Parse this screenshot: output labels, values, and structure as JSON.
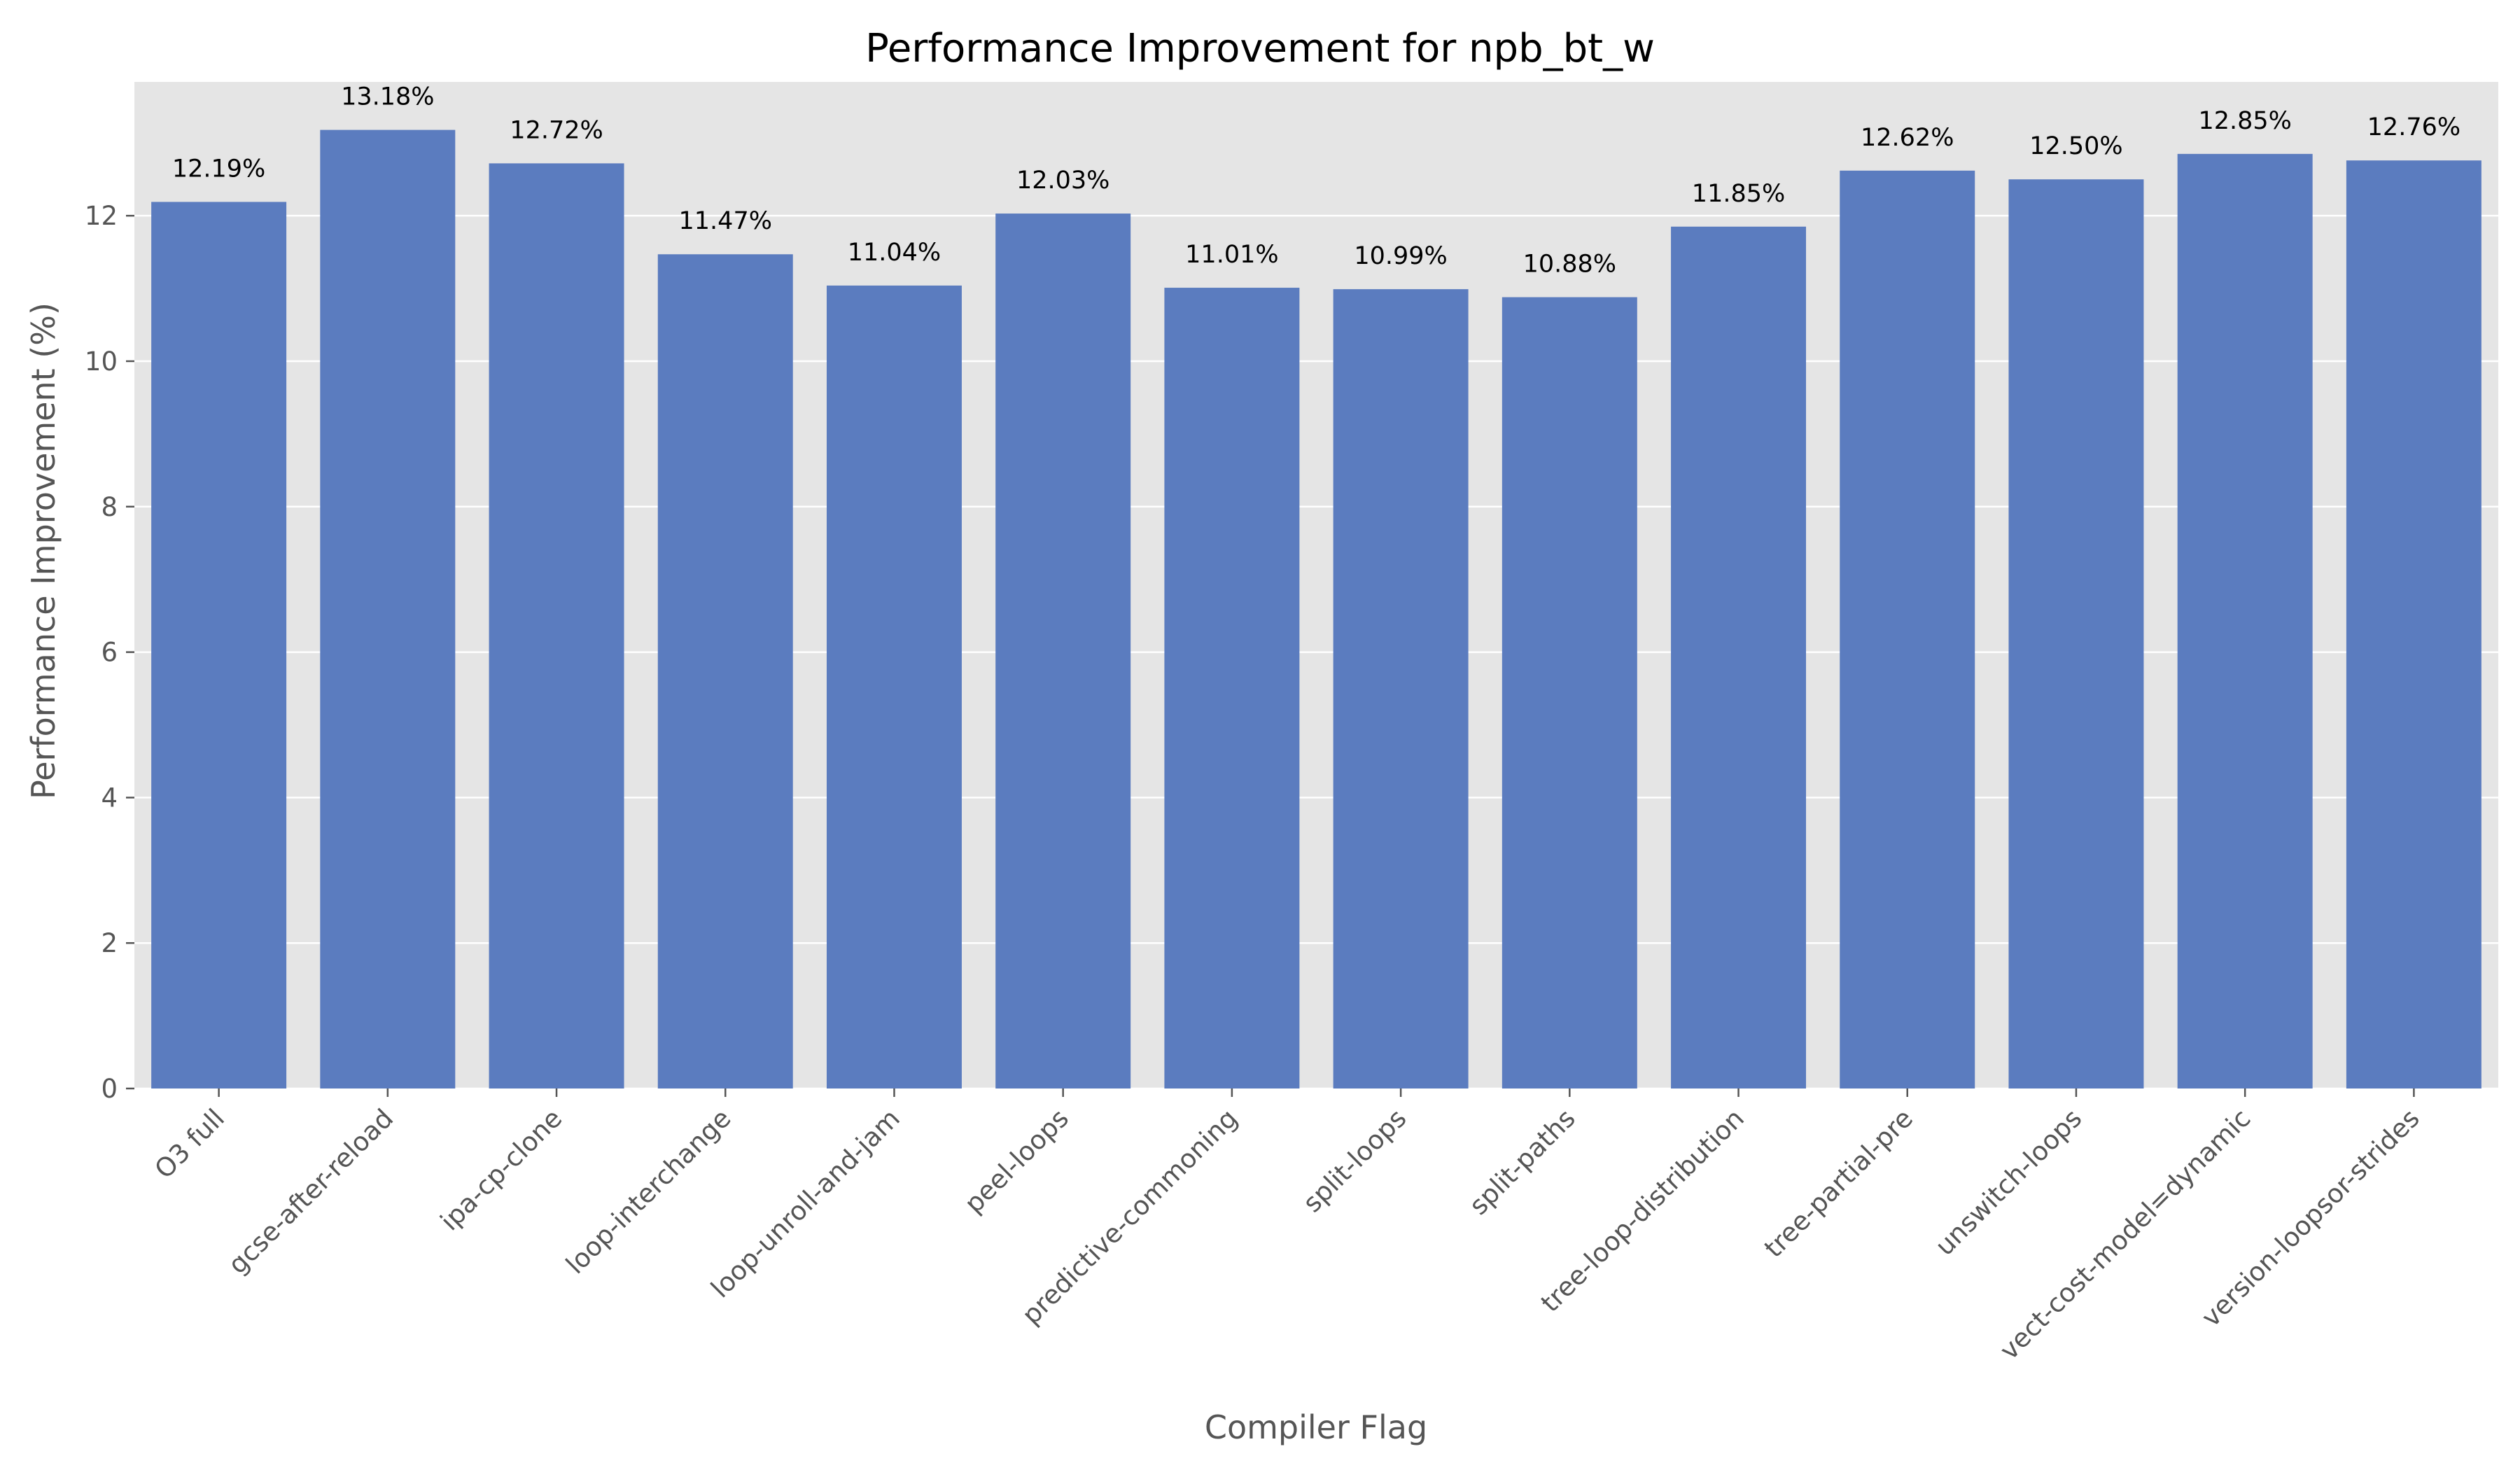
{
  "chart_data": {
    "type": "bar",
    "title": "Performance Improvement for npb_bt_w",
    "xlabel": "Compiler Flag",
    "ylabel": "Performance Improvement (%)",
    "categories": [
      "O3 full",
      "gcse-after-reload",
      "ipa-cp-clone",
      "loop-interchange",
      "loop-unroll-and-jam",
      "peel-loops",
      "predictive-commoning",
      "split-loops",
      "split-paths",
      "tree-loop-distribution",
      "tree-partial-pre",
      "unswitch-loops",
      "vect-cost-model=dynamic",
      "version-loopsor-strides"
    ],
    "values": [
      12.19,
      13.18,
      12.72,
      11.47,
      11.04,
      12.03,
      11.01,
      10.99,
      10.88,
      11.85,
      12.62,
      12.5,
      12.85,
      12.76
    ],
    "value_labels": [
      "12.19%",
      "13.18%",
      "12.72%",
      "11.47%",
      "11.04%",
      "12.03%",
      "11.01%",
      "10.99%",
      "10.88%",
      "11.85%",
      "12.62%",
      "12.50%",
      "12.85%",
      "12.76%"
    ],
    "yticks": [
      "0",
      "2",
      "4",
      "6",
      "8",
      "10",
      "12"
    ],
    "ylim": [
      0,
      13.84
    ],
    "grid": true,
    "colors": {
      "bar": "#5b7cbf",
      "plot_bg": "#e5e5e5",
      "grid": "#ffffff"
    }
  }
}
